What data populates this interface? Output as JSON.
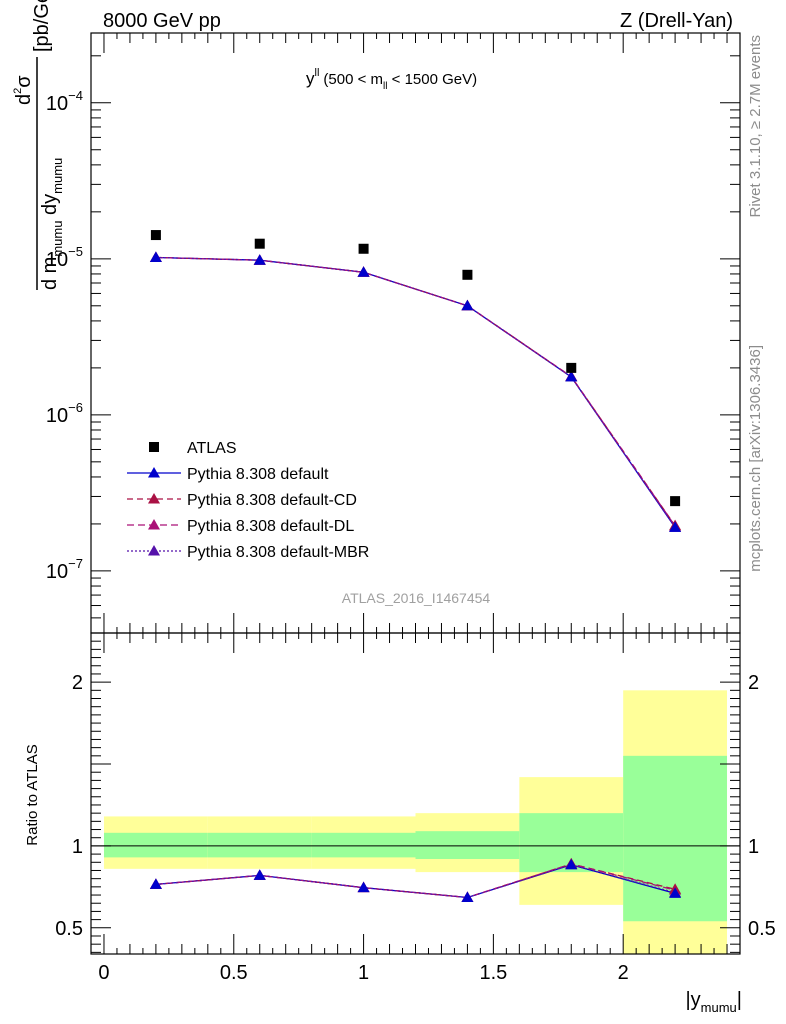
{
  "header": {
    "left": "8000 GeV pp",
    "right": "Z (Drell-Yan)"
  },
  "side_labels": {
    "rivet": "Rivet 3.1.10, ≥ 2.7M events",
    "mcplots": "mcplots.cern.ch [arXiv:1306.3436]"
  },
  "analysis_id": "ATLAS_2016_I1467454",
  "colors": {
    "data": "#000000",
    "default": "#0000cc",
    "cd": "#aa1144",
    "dl": "#aa1177",
    "mbr": "#5511aa",
    "band_green": "#99ff99",
    "band_yellow": "#ffff99"
  },
  "chart_data": [
    {
      "type": "scatter",
      "title_main": "y",
      "title_main_sup": "ll",
      "title_cut_prefix": "(500 < m",
      "title_cut_sub": "ll",
      "title_cut_suffix": " < 1500 GeV)",
      "ylabel": {
        "num": "d",
        "num_sup": "2",
        "num_sym": "σ",
        "den_a": "d m",
        "den_a_sub": "mumu",
        "den_b": " dy",
        "den_b_sub": "mumu",
        "unit": "[pb/GeV]"
      },
      "y_scale": "log",
      "xlim": [
        -0.05,
        2.45
      ],
      "ylim": [
        4e-08,
        0.00028
      ],
      "y_ticks": [
        {
          "base": "10",
          "exp": "−4",
          "value": 0.0001
        },
        {
          "base": "10",
          "exp": "−5",
          "value": 1e-05
        },
        {
          "base": "10",
          "exp": "−6",
          "value": 1e-06
        },
        {
          "base": "10",
          "exp": "−7",
          "value": 1e-07
        }
      ],
      "x": [
        0.2,
        0.6,
        1.0,
        1.4,
        1.8,
        2.2
      ],
      "legend_position": "bottom-left",
      "series": [
        {
          "name": "ATLAS",
          "key": "data",
          "values": [
            1.42e-05,
            1.25e-05,
            1.16e-05,
            7.9e-06,
            2e-06,
            2.8e-07
          ]
        },
        {
          "name": "Pythia 8.308 default",
          "key": "default",
          "values": [
            1.02e-05,
            9.8e-06,
            8.2e-06,
            5e-06,
            1.75e-06,
            1.9e-07
          ]
        },
        {
          "name": "Pythia 8.308 default-CD",
          "key": "cd",
          "values": [
            1.02e-05,
            9.8e-06,
            8.2e-06,
            5e-06,
            1.76e-06,
            1.95e-07
          ]
        },
        {
          "name": "Pythia 8.308 default-DL",
          "key": "dl",
          "values": [
            1.02e-05,
            9.8e-06,
            8.2e-06,
            5e-06,
            1.76e-06,
            1.94e-07
          ]
        },
        {
          "name": "Pythia 8.308 default-MBR",
          "key": "mbr",
          "values": [
            1.02e-05,
            9.8e-06,
            8.2e-06,
            5e-06,
            1.75e-06,
            1.9e-07
          ]
        }
      ]
    },
    {
      "type": "line",
      "ylabel": "Ratio to ATLAS",
      "xlabel_prefix": "|y",
      "xlabel_sub": "mumu",
      "xlabel_suffix": "|",
      "xlim": [
        -0.05,
        2.45
      ],
      "ylim": [
        0.34,
        2.3
      ],
      "x_ticks": [
        {
          "label": "0",
          "value": 0
        },
        {
          "label": "0.5",
          "value": 0.5
        },
        {
          "label": "1",
          "value": 1
        },
        {
          "label": "1.5",
          "value": 1.5
        },
        {
          "label": "2",
          "value": 2
        }
      ],
      "y_ticks": [
        {
          "label": "0.5",
          "value": 0.5
        },
        {
          "label": "1",
          "value": 1
        },
        {
          "label": "2",
          "value": 2
        }
      ],
      "reference_line": 1,
      "bins": [
        [
          0,
          0.4
        ],
        [
          0.4,
          0.8
        ],
        [
          0.8,
          1.2
        ],
        [
          1.2,
          1.6
        ],
        [
          1.6,
          2.0
        ],
        [
          2.0,
          2.4
        ]
      ],
      "band_inner": [
        [
          0.93,
          1.08
        ],
        [
          0.93,
          1.08
        ],
        [
          0.93,
          1.08
        ],
        [
          0.92,
          1.09
        ],
        [
          0.84,
          1.2
        ],
        [
          0.54,
          1.55
        ]
      ],
      "band_outer": [
        [
          0.86,
          1.18
        ],
        [
          0.86,
          1.18
        ],
        [
          0.86,
          1.18
        ],
        [
          0.84,
          1.2
        ],
        [
          0.64,
          1.42
        ],
        [
          0.34,
          1.95
        ]
      ],
      "x": [
        0.2,
        0.6,
        1.0,
        1.4,
        1.8,
        2.2
      ],
      "series": [
        {
          "name": "Pythia 8.308 default",
          "key": "default",
          "values": [
            0.765,
            0.82,
            0.745,
            0.685,
            0.885,
            0.71
          ]
        },
        {
          "name": "Pythia 8.308 default-CD",
          "key": "cd",
          "values": [
            0.765,
            0.82,
            0.745,
            0.685,
            0.89,
            0.735
          ]
        },
        {
          "name": "Pythia 8.308 default-DL",
          "key": "dl",
          "values": [
            0.765,
            0.82,
            0.745,
            0.685,
            0.89,
            0.73
          ]
        },
        {
          "name": "Pythia 8.308 default-MBR",
          "key": "mbr",
          "values": [
            0.765,
            0.82,
            0.745,
            0.685,
            0.885,
            0.715
          ]
        }
      ]
    }
  ]
}
